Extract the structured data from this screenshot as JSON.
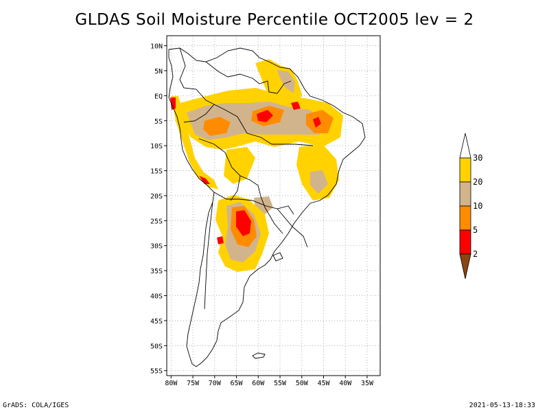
{
  "title": "GLDAS Soil Moisture Percentile OCT2005 lev = 2",
  "footer": {
    "left": "GrADS: COLA/IGES",
    "right": "2021-05-13-18:33"
  },
  "map": {
    "lon_range": [
      -81,
      -32
    ],
    "lat_range": [
      -56,
      12
    ],
    "lat_ticks": [
      "10N",
      "5N",
      "EQ",
      "5S",
      "10S",
      "15S",
      "20S",
      "25S",
      "30S",
      "35S",
      "40S",
      "45S",
      "50S",
      "55S"
    ],
    "lon_ticks": [
      "80W",
      "75W",
      "70W",
      "65W",
      "60W",
      "55W",
      "50W",
      "45W",
      "40W",
      "35W"
    ]
  },
  "legend": {
    "labels": [
      "30",
      "20",
      "10",
      "5",
      "2"
    ],
    "colors": {
      "above30": "#ffffff",
      "20_30": "#ffd200",
      "10_20": "#d2b48c",
      "5_10": "#ff8c00",
      "2_5": "#ff0000",
      "below2": "#8b4513"
    }
  }
}
